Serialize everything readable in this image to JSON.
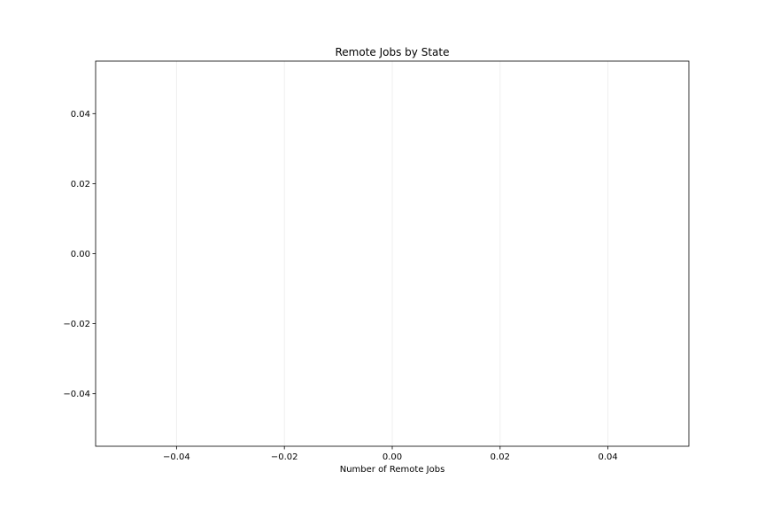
{
  "chart_data": {
    "type": "bar",
    "orientation": "horizontal",
    "title": "Remote Jobs by State",
    "xlabel": "Number of Remote Jobs",
    "ylabel": "",
    "categories": [],
    "values": [],
    "xlim": [
      -0.055,
      0.055
    ],
    "ylim": [
      -0.055,
      0.055
    ],
    "xticks": [
      -0.04,
      -0.02,
      0.0,
      0.02,
      0.04
    ],
    "xtick_labels": [
      "−0.04",
      "−0.02",
      "0.00",
      "0.02",
      "0.04"
    ],
    "yticks": [
      0.04,
      0.02,
      0.0,
      -0.02,
      -0.04
    ],
    "ytick_labels": [
      "0.04",
      "0.02",
      "0.00",
      "−0.02",
      "−0.04"
    ],
    "grid": "x",
    "colors": {
      "grid": "#ebebeb",
      "spine": "#000000",
      "background": "#ffffff"
    }
  }
}
